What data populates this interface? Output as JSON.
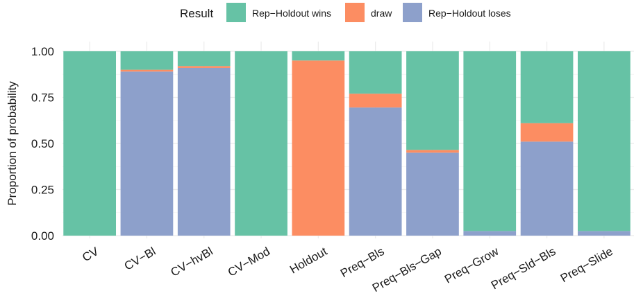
{
  "chart_data": {
    "type": "bar",
    "stacked": true,
    "ylabel": "Proportion of probability",
    "xlabel": "",
    "ylim": [
      0,
      1
    ],
    "yticks": [
      0,
      0.25,
      0.5,
      0.75,
      1
    ],
    "ytick_labels": [
      "0.00",
      "0.25",
      "0.50",
      "0.75",
      "1.00"
    ],
    "legend_title": "Result",
    "legend_position": "top",
    "grid": true,
    "categories": [
      "CV",
      "CV−Bl",
      "CV−hvBl",
      "CV−Mod",
      "Holdout",
      "Preq−Bls",
      "Preq−Bls−Gap",
      "Preq−Grow",
      "Preq−Sld−Bls",
      "Preq−Slide"
    ],
    "series": [
      {
        "name": "Rep−Holdout loses",
        "color": "#8DA0CB",
        "values": [
          0.0,
          0.89,
          0.91,
          0.0,
          0.0,
          0.695,
          0.45,
          0.025,
          0.51,
          0.025
        ]
      },
      {
        "name": "draw",
        "color": "#FC8D62",
        "values": [
          0.0,
          0.01,
          0.01,
          0.0,
          0.95,
          0.075,
          0.015,
          0.0,
          0.1,
          0.0
        ]
      },
      {
        "name": "Rep−Holdout wins",
        "color": "#66C2A5",
        "values": [
          1.0,
          0.1,
          0.08,
          1.0,
          0.05,
          0.23,
          0.535,
          0.975,
          0.39,
          0.975
        ]
      }
    ],
    "legend_order": [
      "Rep−Holdout wins",
      "draw",
      "Rep−Holdout loses"
    ]
  }
}
